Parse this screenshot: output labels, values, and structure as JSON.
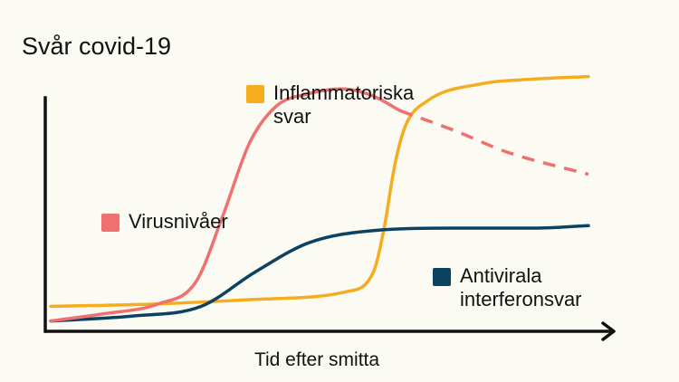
{
  "chart_data": {
    "type": "line",
    "title": "Svår covid-19",
    "xlabel": "Tid efter smitta",
    "ylabel": "",
    "x_range": [
      0,
      100
    ],
    "y_range": [
      0,
      100
    ],
    "grid": false,
    "series": [
      {
        "name": "Virusnivåer",
        "color": "#f07070",
        "x": [
          0,
          10,
          20,
          27,
          32,
          37,
          42,
          48,
          54,
          60,
          65
        ],
        "y": [
          2,
          5,
          9,
          18,
          45,
          75,
          90,
          95,
          97,
          94,
          88
        ],
        "dashed_x": [
          65,
          75,
          85,
          100
        ],
        "dashed_y": [
          88,
          80,
          71,
          62
        ]
      },
      {
        "name": "Inflammatoriska svar",
        "color": "#f5ad1f",
        "x": [
          0,
          20,
          40,
          55,
          60,
          62,
          64,
          66,
          70,
          80,
          90,
          100
        ],
        "y": [
          8,
          9,
          11,
          14,
          22,
          40,
          66,
          82,
          92,
          99,
          101,
          102
        ]
      },
      {
        "name": "Antivirala interferonsvar",
        "color": "#0b4262",
        "x": [
          0,
          15,
          28,
          38,
          48,
          60,
          75,
          90,
          100
        ],
        "y": [
          2,
          4,
          8,
          22,
          34,
          39,
          40,
          40,
          41
        ]
      }
    ]
  },
  "labels": {
    "title": "Svår covid-19",
    "xlabel": "Tid efter smitta",
    "inflammatoriska_line1": "Inflammatoriska",
    "inflammatoriska_line2": "svar",
    "virus": "Virusnivåer",
    "antivirala_line1": "Antivirala",
    "antivirala_line2": "interferonsvar"
  }
}
